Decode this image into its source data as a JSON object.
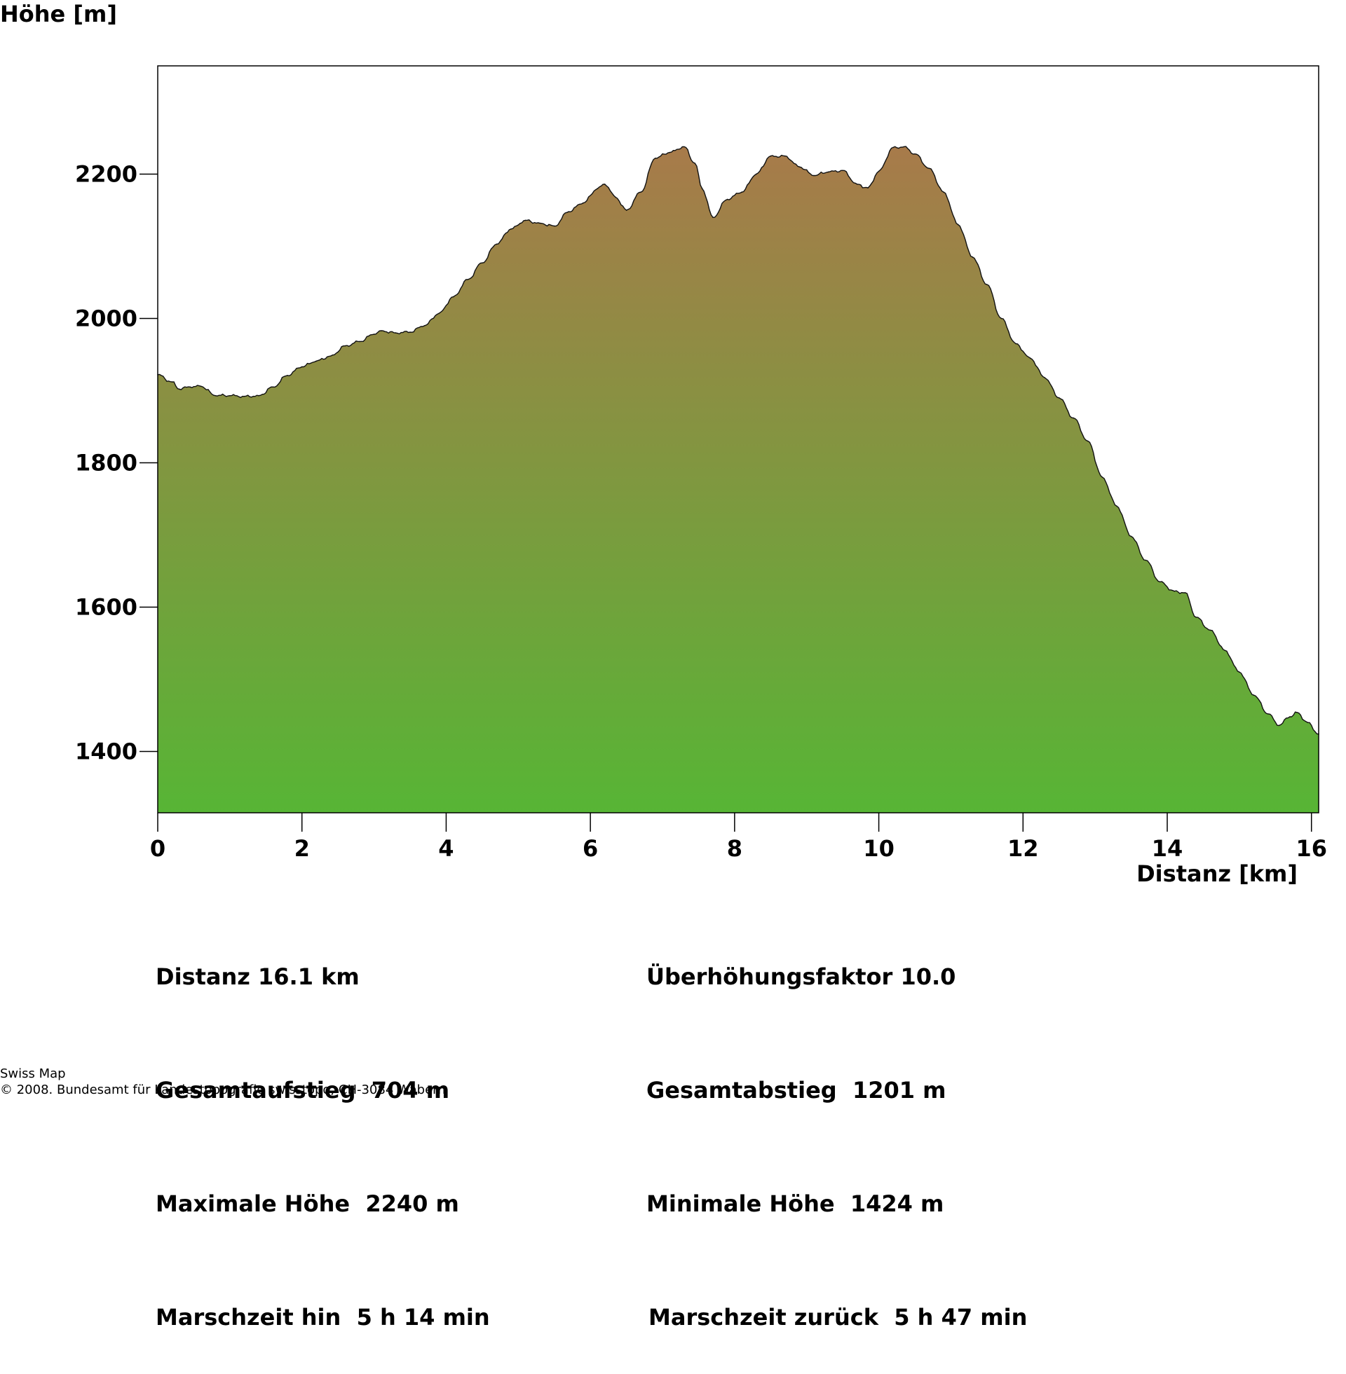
{
  "chart_data": {
    "type": "area",
    "ylabel": "Höhe [m]",
    "xlabel": "Distanz [km]",
    "xlim": [
      0,
      16.1
    ],
    "ylim": [
      1315,
      2350
    ],
    "x_ticks": [
      0,
      2,
      4,
      6,
      8,
      10,
      12,
      14,
      16
    ],
    "y_ticks": [
      1400,
      1600,
      1800,
      2000,
      2200
    ],
    "fill_gradient": {
      "top": "#a87a4a",
      "bottom": "#57b535"
    },
    "line_color": "#111111",
    "grid": false,
    "x": [
      0,
      0.2,
      0.3,
      0.45,
      0.6,
      0.8,
      1.0,
      1.2,
      1.4,
      1.6,
      1.8,
      2.0,
      2.2,
      2.4,
      2.6,
      2.8,
      3.0,
      3.1,
      3.3,
      3.5,
      3.7,
      3.9,
      4.1,
      4.3,
      4.5,
      4.7,
      4.9,
      5.1,
      5.3,
      5.5,
      5.7,
      5.9,
      6.1,
      6.2,
      6.35,
      6.5,
      6.7,
      6.9,
      7.1,
      7.3,
      7.45,
      7.55,
      7.7,
      7.9,
      8.1,
      8.3,
      8.5,
      8.7,
      8.9,
      9.1,
      9.3,
      9.5,
      9.7,
      9.85,
      10.0,
      10.2,
      10.35,
      10.5,
      10.7,
      10.9,
      11.1,
      11.3,
      11.5,
      11.7,
      11.9,
      12.1,
      12.3,
      12.5,
      12.7,
      12.9,
      13.1,
      13.3,
      13.5,
      13.7,
      13.9,
      14.1,
      14.25,
      14.4,
      14.6,
      14.8,
      15.0,
      15.2,
      15.4,
      15.55,
      15.7,
      15.8,
      15.95,
      16.1
    ],
    "y": [
      1922,
      1912,
      1902,
      1905,
      1906,
      1893,
      1893,
      1892,
      1893,
      1905,
      1921,
      1933,
      1941,
      1948,
      1962,
      1968,
      1978,
      1983,
      1980,
      1981,
      1990,
      2007,
      2030,
      2054,
      2077,
      2103,
      2124,
      2136,
      2132,
      2128,
      2148,
      2160,
      2180,
      2186,
      2168,
      2150,
      2175,
      2222,
      2230,
      2238,
      2215,
      2180,
      2140,
      2165,
      2175,
      2200,
      2225,
      2225,
      2210,
      2198,
      2203,
      2205,
      2186,
      2181,
      2204,
      2237,
      2238,
      2228,
      2208,
      2175,
      2130,
      2085,
      2047,
      2000,
      1965,
      1945,
      1918,
      1890,
      1862,
      1830,
      1780,
      1740,
      1698,
      1665,
      1635,
      1622,
      1620,
      1586,
      1568,
      1540,
      1510,
      1478,
      1452,
      1436,
      1448,
      1454,
      1440,
      1424
    ]
  },
  "stats": {
    "distanz": "Distanz 16.1 km",
    "ueberhoehung": "Überhöhungsfaktor 10.0",
    "aufstieg": "Gesamtaufstieg  704 m",
    "abstieg": "Gesamtabstieg  1201 m",
    "max_hoehe": "Maximale Höhe  2240 m",
    "min_hoehe": "Minimale Höhe  1424 m",
    "zeit_hin": "Marschzeit hin  5 h 14 min",
    "zeit_zurueck": "Marschzeit zurück  5 h 47 min"
  },
  "credits": {
    "line1": "Swiss Map",
    "line2": "© 2008. Bundesamt für Landestopografie swisstopo, CH-3084 Wabern"
  }
}
